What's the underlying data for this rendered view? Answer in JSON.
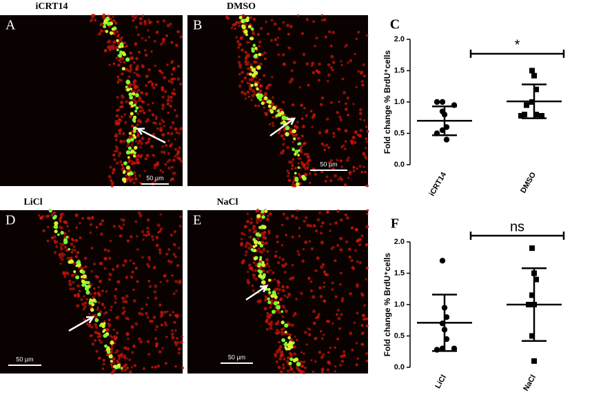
{
  "panels": [
    {
      "title": "iCRT14",
      "label": "A",
      "scale_bar": "50 µm"
    },
    {
      "title": "DMSO",
      "label": "B",
      "scale_bar": "50 µm"
    },
    {
      "title": "LiCl",
      "label": "D",
      "scale_bar": "50 µm"
    },
    {
      "title": "NaCl",
      "label": "E",
      "scale_bar": "50 µm"
    }
  ],
  "chart_data": [
    {
      "type": "dotplot",
      "panel_label": "C",
      "y_label": "Fold change % BrdU⁺cells",
      "significance": "*",
      "categories": [
        "iCRT14",
        "DMSO"
      ],
      "markers": [
        "circle",
        "square"
      ],
      "color": "#000000",
      "groups": [
        {
          "values": [
            1.0,
            1.0,
            0.95,
            0.85,
            0.8,
            0.6,
            0.55,
            0.5,
            0.4
          ],
          "mean": 0.7,
          "upper": 0.93,
          "lower": 0.47
        },
        {
          "values": [
            1.5,
            1.42,
            1.2,
            1.0,
            0.95,
            0.8,
            0.8,
            0.78,
            0.78
          ],
          "mean": 1.01,
          "upper": 1.28,
          "lower": 0.74
        }
      ],
      "ylim": [
        0,
        2
      ],
      "yticks": [
        {
          "value": 0,
          "label": "0.0"
        },
        {
          "value": 0.5,
          "label": "0.5"
        },
        {
          "value": 1,
          "label": "1.0"
        },
        {
          "value": 1.5,
          "label": "1.5"
        },
        {
          "value": 2,
          "label": "2.0"
        }
      ]
    },
    {
      "type": "dotplot",
      "panel_label": "F",
      "y_label": "Fold change % BrdU⁺cells",
      "significance": "ns",
      "categories": [
        "LiCl",
        "NaCl"
      ],
      "markers": [
        "circle",
        "square"
      ],
      "color": "#000000",
      "groups": [
        {
          "values": [
            1.7,
            0.95,
            0.8,
            0.7,
            0.6,
            0.45,
            0.3,
            0.28,
            0.3
          ],
          "mean": 0.71,
          "upper": 1.16,
          "lower": 0.26
        },
        {
          "values": [
            1.9,
            1.5,
            1.4,
            1.15,
            1.0,
            1.0,
            0.5,
            0.1
          ],
          "mean": 1.0,
          "upper": 1.58,
          "lower": 0.42
        }
      ],
      "ylim": [
        0,
        2
      ],
      "yticks": [
        {
          "value": 0,
          "label": "0.0"
        },
        {
          "value": 0.5,
          "label": "0.5"
        },
        {
          "value": 1,
          "label": "1.0"
        },
        {
          "value": 1.5,
          "label": "1.5"
        },
        {
          "value": 2,
          "label": "2.0"
        }
      ]
    }
  ]
}
